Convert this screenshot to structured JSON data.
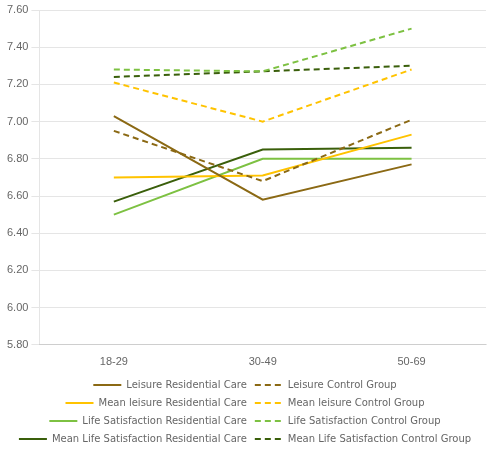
{
  "chart_data": {
    "type": "line",
    "categories": [
      "18-29",
      "30-49",
      "50-69"
    ],
    "series": [
      {
        "name": "Leisure Residential Care",
        "color": "#8B6914",
        "line_style": "solid",
        "values": [
          7.03,
          6.58,
          6.77
        ]
      },
      {
        "name": "Leisure Control Group",
        "color": "#8B6914",
        "line_style": "dashed",
        "values": [
          6.95,
          6.68,
          7.01
        ]
      },
      {
        "name": "Mean leisure Residential Care",
        "color": "#FFC300",
        "line_style": "solid",
        "values": [
          6.7,
          6.71,
          6.93
        ]
      },
      {
        "name": "Mean leisure Control Group",
        "color": "#FFC300",
        "line_style": "dashed",
        "values": [
          7.21,
          7.0,
          7.28
        ]
      },
      {
        "name": "Life Satisfaction Residential Care",
        "color": "#7DC142",
        "line_style": "solid",
        "values": [
          6.5,
          6.8,
          6.8
        ]
      },
      {
        "name": "Life Satisfaction Control Group",
        "color": "#7DC142",
        "line_style": "dashed",
        "values": [
          7.28,
          7.27,
          7.5
        ]
      },
      {
        "name": "Mean Life Satisfaction Residential Care",
        "color": "#3A5F0B",
        "line_style": "solid",
        "values": [
          6.57,
          6.85,
          6.86
        ]
      },
      {
        "name": "Mean Life Satisfaction Control Group",
        "color": "#3A5F0B",
        "line_style": "dashed",
        "values": [
          7.24,
          7.27,
          7.3
        ]
      }
    ],
    "ylim": [
      5.8,
      7.6
    ],
    "yticks": [
      {
        "value": 5.8,
        "label": "5.80"
      },
      {
        "value": 6.0,
        "label": "6.00"
      },
      {
        "value": 6.2,
        "label": "6.20"
      },
      {
        "value": 6.4,
        "label": "6.40"
      },
      {
        "value": 6.6,
        "label": "6.60"
      },
      {
        "value": 6.8,
        "label": "6.80"
      },
      {
        "value": 7.0,
        "label": "7.00"
      },
      {
        "value": 7.2,
        "label": "7.20"
      },
      {
        "value": 7.4,
        "label": "7.40"
      },
      {
        "value": 7.6,
        "label": "7.60"
      }
    ],
    "grid": "y",
    "legend": "bottom"
  }
}
